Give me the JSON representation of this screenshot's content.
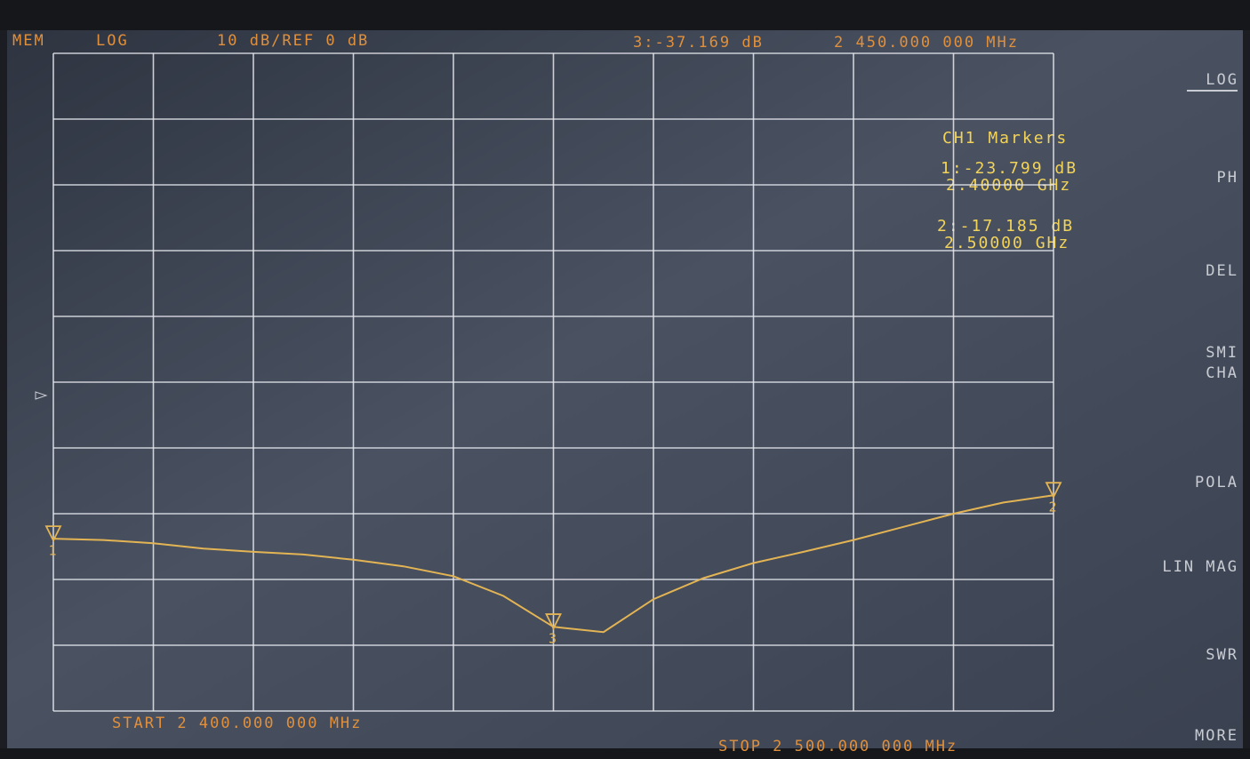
{
  "screen": {
    "header": {
      "mode": "MEM",
      "format": "LOG",
      "scale": "10 dB/REF 0 dB",
      "active_marker": "3:-37.169 dB",
      "active_freq": "2 450.000 000 MHz"
    },
    "marker_box": {
      "title": "CH1 Markers",
      "entries": [
        {
          "value": "1:-23.799 dB",
          "freq": "2.40000 GHz"
        },
        {
          "value": "2:-17.185 dB",
          "freq": "2.50000 GHz"
        }
      ]
    },
    "start": "START 2 400.000 000 MHz",
    "stop": "STOP 2 500.000 000 MHz",
    "softkeys": [
      "LOG",
      "PH",
      "DEL",
      "SMI",
      "CHA",
      "POLA",
      "LIN MAG",
      "SWR",
      "MORE"
    ]
  },
  "chart_data": {
    "type": "line",
    "x": [
      2.4,
      2.405,
      2.41,
      2.415,
      2.42,
      2.425,
      2.43,
      2.435,
      2.44,
      2.445,
      2.45,
      2.455,
      2.46,
      2.465,
      2.47,
      2.475,
      2.48,
      2.485,
      2.49,
      2.495,
      2.5
    ],
    "values": [
      -23.8,
      -24.0,
      -24.5,
      -25.3,
      -25.8,
      -26.2,
      -27.0,
      -28.0,
      -29.5,
      -32.5,
      -37.2,
      -38.0,
      -33.0,
      -29.8,
      -27.5,
      -25.8,
      -24.0,
      -22.0,
      -20.0,
      -18.3,
      -17.2
    ],
    "color": "#e3b454",
    "xlim": [
      2.4,
      2.5
    ],
    "xticks": [
      2.4,
      2.41,
      2.42,
      2.43,
      2.44,
      2.45,
      2.46,
      2.47,
      2.48,
      2.49,
      2.5
    ],
    "ylim": [
      -50,
      50
    ],
    "yticks": [
      -50,
      -40,
      -30,
      -20,
      -10,
      0,
      10,
      20,
      30,
      40,
      50
    ],
    "grid": true,
    "markers": [
      {
        "label": "1",
        "x": 2.4,
        "value": -23.799
      },
      {
        "label": "2",
        "x": 2.5,
        "value": -17.185
      },
      {
        "label": "3",
        "x": 2.45,
        "value": -37.169
      }
    ]
  }
}
